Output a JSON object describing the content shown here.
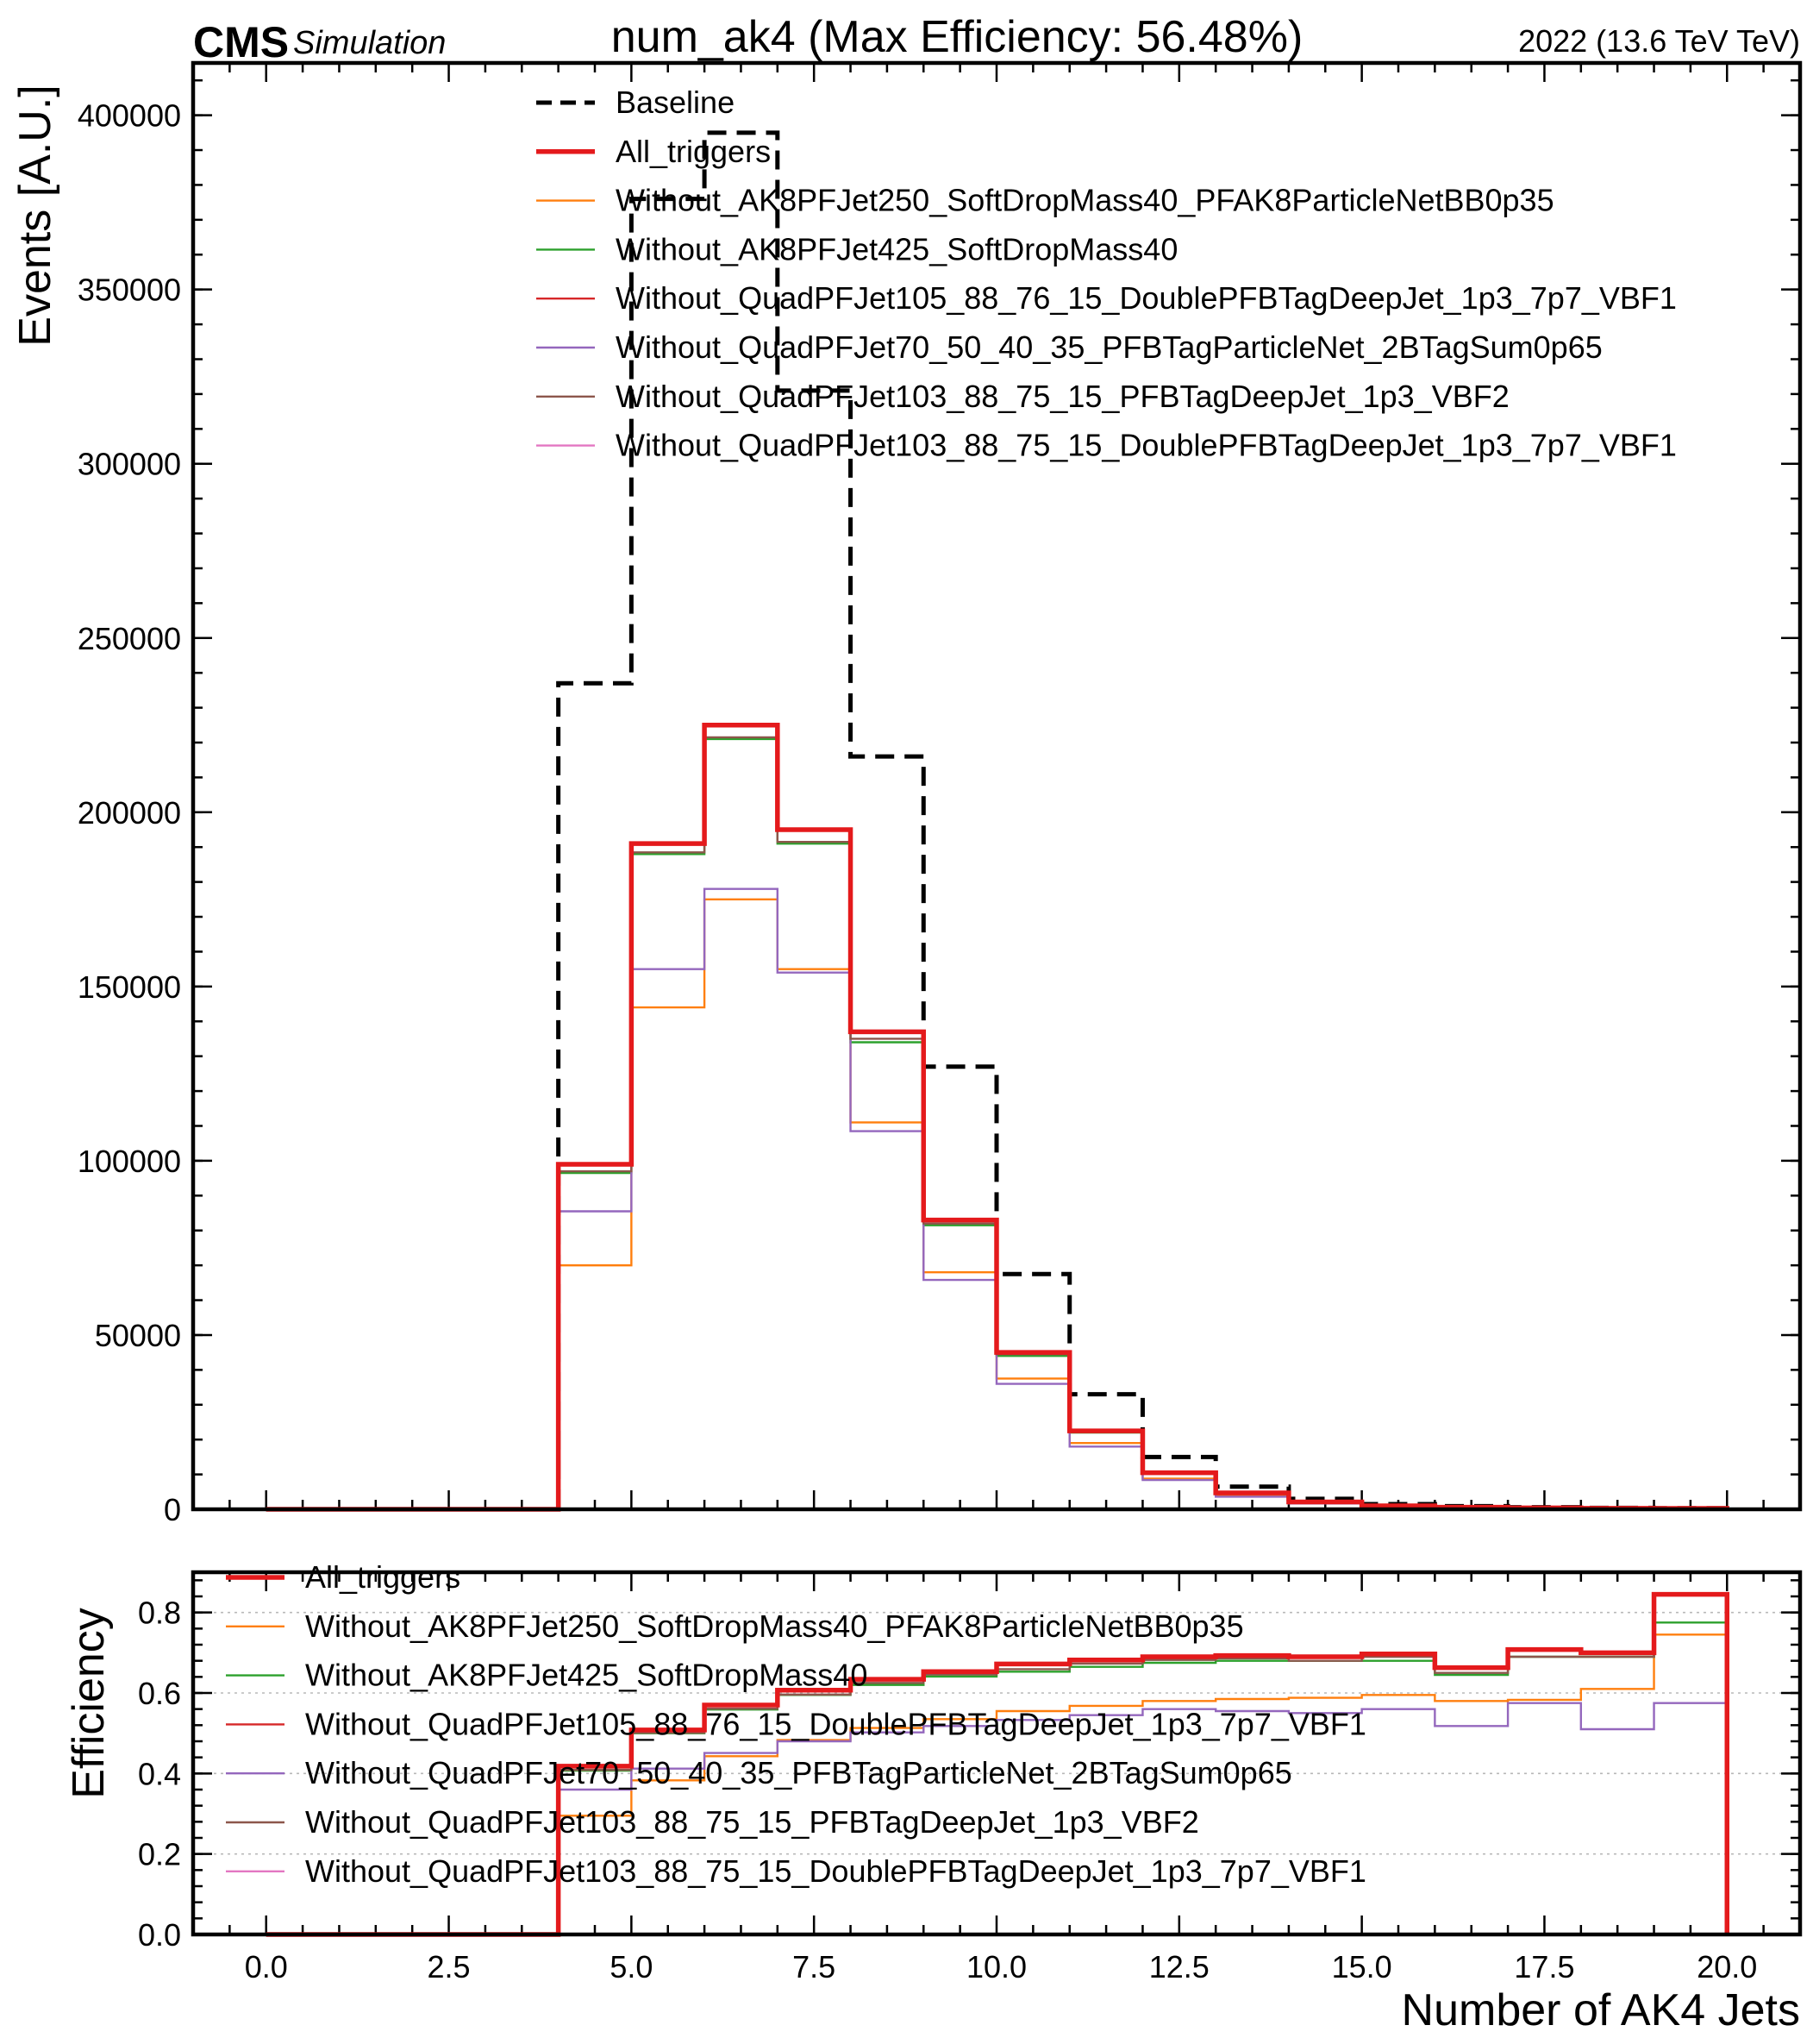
{
  "header": {
    "cms": "CMS",
    "simulation": "Simulation",
    "title": "num_ak4 (Max Efficiency: 56.48%)",
    "lumi": "2022 (13.6 TeV TeV)"
  },
  "colors": {
    "Baseline": "#000000",
    "All_triggers": "#e41a1c",
    "Without_AK8PFJet250_SoftDropMass40_PFAK8ParticleNetBB0p35": "#ff7f0e",
    "Without_AK8PFJet425_SoftDropMass40": "#2ca02c",
    "Without_QuadPFJet105_88_76_15_DoublePFBTagDeepJet_1p3_7p7_VBF1": "#d62728",
    "Without_QuadPFJet70_50_40_35_PFBTagParticleNet_2BTagSum0p65": "#9467bd",
    "Without_QuadPFJet103_88_75_15_PFBTagDeepJet_1p3_VBF2": "#8c564b",
    "Without_QuadPFJet103_88_75_15_DoublePFBTagDeepJet_1p3_7p7_VBF1": "#e377c2"
  },
  "chart_data": [
    {
      "type": "line",
      "xlabel": "Number of AK4 Jets",
      "ylabel": "Events [A.U.]",
      "xlim": [
        -1,
        21
      ],
      "ylim": [
        0,
        415000
      ],
      "xticks": [
        "0.0",
        "2.5",
        "5.0",
        "7.5",
        "10.0",
        "12.5",
        "15.0",
        "17.5",
        "20.0"
      ],
      "yticks": [
        "0",
        "50000",
        "100000",
        "150000",
        "200000",
        "250000",
        "300000",
        "350000",
        "400000"
      ],
      "legend_position": "top-center",
      "bin_edges": [
        0,
        1,
        2,
        3,
        4,
        5,
        6,
        7,
        8,
        9,
        10,
        11,
        12,
        13,
        14,
        15,
        16,
        17,
        18,
        19,
        20
      ],
      "series": [
        {
          "name": "Baseline",
          "values": [
            0,
            0,
            0,
            0,
            237000,
            376000,
            395000,
            321000,
            216000,
            127000,
            67500,
            33000,
            15000,
            6500,
            3000,
            1500,
            900,
            600,
            400,
            300
          ]
        },
        {
          "name": "All_triggers",
          "values": [
            0,
            0,
            0,
            0,
            99000,
            191000,
            225000,
            195000,
            137000,
            83000,
            45000,
            22500,
            10500,
            4700,
            2100,
            1000,
            600,
            400,
            280,
            250
          ]
        },
        {
          "name": "Without_AK8PFJet250_SoftDropMass40_PFAK8ParticleNetBB0p35",
          "values": [
            0,
            0,
            0,
            0,
            70000,
            144000,
            175000,
            155000,
            111000,
            68000,
            37500,
            19000,
            8800,
            3900,
            1750,
            850,
            500,
            320,
            230,
            210
          ]
        },
        {
          "name": "Without_AK8PFJet425_SoftDropMass40",
          "values": [
            0,
            0,
            0,
            0,
            96500,
            188000,
            221000,
            191000,
            134000,
            81500,
            44000,
            22000,
            10200,
            4600,
            2050,
            980,
            580,
            390,
            270,
            240
          ]
        },
        {
          "name": "Without_QuadPFJet105_88_76_15_DoublePFBTagDeepJet_1p3_7p7_VBF1",
          "values": [
            0,
            0,
            0,
            0,
            99000,
            191000,
            225000,
            195000,
            137000,
            83000,
            45000,
            22500,
            10500,
            4700,
            2100,
            1000,
            600,
            400,
            280,
            250
          ]
        },
        {
          "name": "Without_QuadPFJet70_50_40_35_PFBTagParticleNet_2BTagSum0p65",
          "values": [
            0,
            0,
            0,
            0,
            85500,
            155000,
            178000,
            154000,
            108500,
            65800,
            36000,
            18000,
            8400,
            3600,
            1650,
            800,
            470,
            310,
            210,
            180
          ]
        },
        {
          "name": "Without_QuadPFJet103_88_75_15_PFBTagDeepJet_1p3_VBF2",
          "values": [
            0,
            0,
            0,
            0,
            97000,
            188500,
            221500,
            191500,
            135000,
            82000,
            44500,
            22200,
            10300,
            4650,
            2070,
            990,
            590,
            395,
            275,
            245
          ]
        },
        {
          "name": "Without_QuadPFJet103_88_75_15_DoublePFBTagDeepJet_1p3_7p7_VBF1",
          "values": [
            0,
            0,
            0,
            0,
            99000,
            191000,
            225000,
            195000,
            137000,
            83000,
            45000,
            22500,
            10500,
            4700,
            2100,
            1000,
            600,
            400,
            280,
            250
          ]
        }
      ]
    },
    {
      "type": "line",
      "xlabel": "Number of AK4 Jets",
      "ylabel": "Efficiency",
      "xlim": [
        -1,
        21
      ],
      "ylim": [
        0,
        0.9
      ],
      "xticks": [
        "0.0",
        "2.5",
        "5.0",
        "7.5",
        "10.0",
        "12.5",
        "15.0",
        "17.5",
        "20.0"
      ],
      "yticks": [
        "0.0",
        "0.2",
        "0.4",
        "0.6",
        "0.8"
      ],
      "grid": true,
      "legend_position": "top-left",
      "bin_edges": [
        0,
        1,
        2,
        3,
        4,
        5,
        6,
        7,
        8,
        9,
        10,
        11,
        12,
        13,
        14,
        15,
        16,
        17,
        18,
        19,
        20
      ],
      "series": [
        {
          "name": "All_triggers",
          "values": [
            0,
            0,
            0,
            0,
            0.418,
            0.508,
            0.57,
            0.607,
            0.634,
            0.653,
            0.672,
            0.682,
            0.69,
            0.693,
            0.69,
            0.697,
            0.663,
            0.708,
            0.7,
            0.845
          ]
        },
        {
          "name": "Without_AK8PFJet250_SoftDropMass40_PFAK8ParticleNetBB0p35",
          "values": [
            0,
            0,
            0,
            0,
            0.295,
            0.383,
            0.443,
            0.483,
            0.513,
            0.535,
            0.555,
            0.568,
            0.58,
            0.585,
            0.588,
            0.595,
            0.58,
            0.583,
            0.61,
            0.745
          ]
        },
        {
          "name": "Without_AK8PFJet425_SoftDropMass40",
          "values": [
            0,
            0,
            0,
            0,
            0.407,
            0.5,
            0.559,
            0.595,
            0.62,
            0.641,
            0.653,
            0.665,
            0.675,
            0.68,
            0.68,
            0.68,
            0.645,
            0.69,
            0.69,
            0.775
          ]
        },
        {
          "name": "Without_QuadPFJet105_88_76_15_DoublePFBTagDeepJet_1p3_7p7_VBF1",
          "values": [
            0,
            0,
            0,
            0,
            0.418,
            0.508,
            0.57,
            0.607,
            0.634,
            0.653,
            0.672,
            0.682,
            0.69,
            0.693,
            0.69,
            0.697,
            0.663,
            0.708,
            0.7,
            0.845
          ]
        },
        {
          "name": "Without_QuadPFJet70_50_40_35_PFBTagParticleNet_2BTagSum0p65",
          "values": [
            0,
            0,
            0,
            0,
            0.36,
            0.412,
            0.451,
            0.48,
            0.502,
            0.518,
            0.533,
            0.545,
            0.56,
            0.555,
            0.55,
            0.56,
            0.518,
            0.575,
            0.51,
            0.575
          ]
        },
        {
          "name": "Without_QuadPFJet103_88_75_15_PFBTagDeepJet_1p3_VBF2",
          "values": [
            0,
            0,
            0,
            0,
            0.409,
            0.501,
            0.561,
            0.596,
            0.625,
            0.646,
            0.659,
            0.673,
            0.682,
            0.686,
            0.68,
            0.69,
            0.65,
            0.69,
            0.69,
            0.845
          ]
        },
        {
          "name": "Without_QuadPFJet103_88_75_15_DoublePFBTagDeepJet_1p3_7p7_VBF1",
          "values": [
            0,
            0,
            0,
            0,
            0.418,
            0.508,
            0.57,
            0.607,
            0.634,
            0.653,
            0.672,
            0.682,
            0.69,
            0.693,
            0.69,
            0.697,
            0.663,
            0.708,
            0.7,
            0.845
          ]
        }
      ]
    }
  ]
}
